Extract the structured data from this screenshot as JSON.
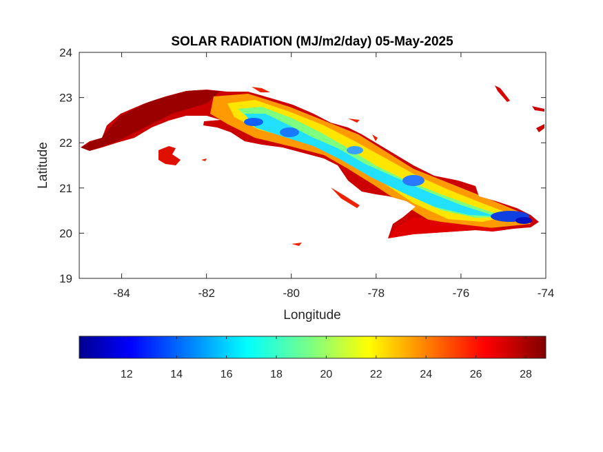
{
  "chart_data": {
    "type": "heatmap",
    "title": "SOLAR RADIATION (MJ/m2/day) 05-May-2025",
    "xlabel": "Longitude",
    "ylabel": "Latitude",
    "xlim": [
      -85,
      -74
    ],
    "ylim": [
      19,
      24
    ],
    "xticks": [
      "-84",
      "-82",
      "-80",
      "-78",
      "-76",
      "-74"
    ],
    "yticks": [
      "19",
      "20",
      "21",
      "22",
      "23",
      "24"
    ],
    "colorbar": {
      "orientation": "horizontal",
      "range": [
        10.1,
        28.8
      ],
      "ticks": [
        "12",
        "14",
        "16",
        "18",
        "20",
        "22",
        "24",
        "26",
        "28"
      ],
      "colormap": "jet"
    },
    "region": "Cuba",
    "colors": {
      "low": "#00008f",
      "mid": "#ffff00",
      "high": "#800000"
    }
  }
}
